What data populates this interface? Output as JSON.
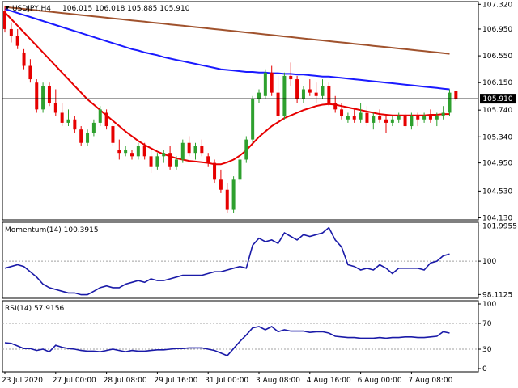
{
  "chart_data": {
    "type": "candlestick",
    "symbol_timeframe": "USDJPY,H4",
    "ohlc_header": "106.015 106.018 105.885 105.910",
    "last_price_label": "105.910",
    "last_price": 105.91,
    "colors": {
      "bull": "#2ea02e",
      "bear": "#e60000",
      "ma_fast": "#e60000",
      "ma_mid": "#1a1aff",
      "ma_slow": "#a0522d",
      "indicator_line": "#1a1aa8",
      "grid_dotted": "#a0a0a0",
      "price_line": "#000000",
      "price_tag_bg": "#000000"
    },
    "price_axis": {
      "min": 104.1,
      "max": 107.36,
      "tick_labels": [
        "107.320",
        "106.950",
        "106.550",
        "106.150",
        "105.740",
        "105.340",
        "104.950",
        "104.530",
        "104.130"
      ],
      "tick_values": [
        107.32,
        106.95,
        106.55,
        106.15,
        105.74,
        105.34,
        104.95,
        104.53,
        104.13
      ]
    },
    "x_axis": {
      "tick_labels": [
        "23 Jul 2020",
        "27 Jul 00:00",
        "28 Jul 08:00",
        "29 Jul 16:00",
        "31 Jul 00:00",
        "3 Aug 08:00",
        "4 Aug 16:00",
        "6 Aug 00:00",
        "7 Aug 08:00"
      ],
      "tick_bar_index": [
        0,
        8,
        16,
        24,
        32,
        40,
        48,
        56,
        64
      ]
    },
    "candles": [
      {
        "o": 107.22,
        "h": 107.3,
        "l": 106.9,
        "c": 106.95
      },
      {
        "o": 106.95,
        "h": 107.05,
        "l": 106.75,
        "c": 106.85
      },
      {
        "o": 106.85,
        "h": 106.95,
        "l": 106.65,
        "c": 106.7
      },
      {
        "o": 106.6,
        "h": 106.65,
        "l": 106.35,
        "c": 106.4
      },
      {
        "o": 106.4,
        "h": 106.5,
        "l": 106.15,
        "c": 106.2
      },
      {
        "o": 106.15,
        "h": 106.2,
        "l": 105.7,
        "c": 105.75
      },
      {
        "o": 105.75,
        "h": 106.15,
        "l": 105.7,
        "c": 106.1
      },
      {
        "o": 106.1,
        "h": 106.15,
        "l": 105.8,
        "c": 105.85
      },
      {
        "o": 105.85,
        "h": 106.05,
        "l": 105.65,
        "c": 105.7
      },
      {
        "o": 105.7,
        "h": 105.85,
        "l": 105.5,
        "c": 105.55
      },
      {
        "o": 105.55,
        "h": 105.75,
        "l": 105.5,
        "c": 105.6
      },
      {
        "o": 105.6,
        "h": 105.65,
        "l": 105.4,
        "c": 105.45
      },
      {
        "o": 105.45,
        "h": 105.5,
        "l": 105.2,
        "c": 105.25
      },
      {
        "o": 105.25,
        "h": 105.45,
        "l": 105.2,
        "c": 105.4
      },
      {
        "o": 105.4,
        "h": 105.6,
        "l": 105.35,
        "c": 105.55
      },
      {
        "o": 105.55,
        "h": 105.8,
        "l": 105.5,
        "c": 105.75
      },
      {
        "o": 105.7,
        "h": 105.75,
        "l": 105.45,
        "c": 105.5
      },
      {
        "o": 105.5,
        "h": 105.55,
        "l": 105.2,
        "c": 105.25
      },
      {
        "o": 105.15,
        "h": 105.3,
        "l": 105.0,
        "c": 105.1
      },
      {
        "o": 105.1,
        "h": 105.2,
        "l": 105.05,
        "c": 105.15
      },
      {
        "o": 105.1,
        "h": 105.15,
        "l": 105.0,
        "c": 105.05
      },
      {
        "o": 105.05,
        "h": 105.25,
        "l": 105.0,
        "c": 105.2
      },
      {
        "o": 105.2,
        "h": 105.25,
        "l": 105.0,
        "c": 105.05
      },
      {
        "o": 105.05,
        "h": 105.15,
        "l": 104.8,
        "c": 104.9
      },
      {
        "o": 104.9,
        "h": 105.1,
        "l": 104.85,
        "c": 105.05
      },
      {
        "o": 105.05,
        "h": 105.15,
        "l": 104.95,
        "c": 105.1
      },
      {
        "o": 105.1,
        "h": 105.2,
        "l": 104.85,
        "c": 104.9
      },
      {
        "o": 104.9,
        "h": 105.05,
        "l": 104.85,
        "c": 105.0
      },
      {
        "o": 105.0,
        "h": 105.3,
        "l": 104.95,
        "c": 105.25
      },
      {
        "o": 105.25,
        "h": 105.35,
        "l": 105.05,
        "c": 105.1
      },
      {
        "o": 105.1,
        "h": 105.25,
        "l": 105.0,
        "c": 105.2
      },
      {
        "o": 105.2,
        "h": 105.3,
        "l": 105.05,
        "c": 105.1
      },
      {
        "o": 105.05,
        "h": 105.1,
        "l": 104.9,
        "c": 104.95
      },
      {
        "o": 104.95,
        "h": 105.0,
        "l": 104.65,
        "c": 104.7
      },
      {
        "o": 104.7,
        "h": 104.85,
        "l": 104.5,
        "c": 104.55
      },
      {
        "o": 104.55,
        "h": 104.65,
        "l": 104.2,
        "c": 104.25
      },
      {
        "o": 104.25,
        "h": 104.75,
        "l": 104.2,
        "c": 104.7
      },
      {
        "o": 104.7,
        "h": 105.05,
        "l": 104.65,
        "c": 105.0
      },
      {
        "o": 105.0,
        "h": 105.35,
        "l": 104.95,
        "c": 105.3
      },
      {
        "o": 105.3,
        "h": 105.95,
        "l": 105.25,
        "c": 105.9
      },
      {
        "o": 105.9,
        "h": 106.05,
        "l": 105.85,
        "c": 106.0
      },
      {
        "o": 105.95,
        "h": 106.35,
        "l": 105.9,
        "c": 106.3
      },
      {
        "o": 106.3,
        "h": 106.4,
        "l": 105.95,
        "c": 106.0
      },
      {
        "o": 106.0,
        "h": 106.25,
        "l": 105.6,
        "c": 105.65
      },
      {
        "o": 105.65,
        "h": 106.3,
        "l": 105.6,
        "c": 106.25
      },
      {
        "o": 106.25,
        "h": 106.45,
        "l": 106.1,
        "c": 106.2
      },
      {
        "o": 106.2,
        "h": 106.25,
        "l": 105.85,
        "c": 105.9
      },
      {
        "o": 105.9,
        "h": 106.1,
        "l": 105.85,
        "c": 106.05
      },
      {
        "o": 106.05,
        "h": 106.2,
        "l": 105.95,
        "c": 106.0
      },
      {
        "o": 106.0,
        "h": 106.15,
        "l": 105.85,
        "c": 105.95
      },
      {
        "o": 105.95,
        "h": 106.2,
        "l": 105.9,
        "c": 106.1
      },
      {
        "o": 106.1,
        "h": 106.15,
        "l": 105.8,
        "c": 105.85
      },
      {
        "o": 105.85,
        "h": 105.95,
        "l": 105.7,
        "c": 105.75
      },
      {
        "o": 105.75,
        "h": 105.85,
        "l": 105.6,
        "c": 105.65
      },
      {
        "o": 105.6,
        "h": 105.7,
        "l": 105.55,
        "c": 105.65
      },
      {
        "o": 105.65,
        "h": 105.75,
        "l": 105.55,
        "c": 105.6
      },
      {
        "o": 105.6,
        "h": 105.85,
        "l": 105.55,
        "c": 105.7
      },
      {
        "o": 105.7,
        "h": 105.8,
        "l": 105.5,
        "c": 105.55
      },
      {
        "o": 105.55,
        "h": 105.7,
        "l": 105.45,
        "c": 105.65
      },
      {
        "o": 105.65,
        "h": 105.75,
        "l": 105.55,
        "c": 105.6
      },
      {
        "o": 105.6,
        "h": 105.65,
        "l": 105.4,
        "c": 105.55
      },
      {
        "o": 105.55,
        "h": 105.65,
        "l": 105.5,
        "c": 105.6
      },
      {
        "o": 105.6,
        "h": 105.7,
        "l": 105.55,
        "c": 105.65
      },
      {
        "o": 105.65,
        "h": 105.7,
        "l": 105.45,
        "c": 105.5
      },
      {
        "o": 105.5,
        "h": 105.7,
        "l": 105.45,
        "c": 105.65
      },
      {
        "o": 105.65,
        "h": 105.7,
        "l": 105.5,
        "c": 105.6
      },
      {
        "o": 105.6,
        "h": 105.7,
        "l": 105.55,
        "c": 105.65
      },
      {
        "o": 105.65,
        "h": 105.75,
        "l": 105.55,
        "c": 105.6
      },
      {
        "o": 105.6,
        "h": 105.7,
        "l": 105.5,
        "c": 105.65
      },
      {
        "o": 105.65,
        "h": 105.8,
        "l": 105.6,
        "c": 105.7
      },
      {
        "o": 105.7,
        "h": 106.05,
        "l": 105.65,
        "c": 106.0
      },
      {
        "o": 106.02,
        "h": 106.02,
        "l": 105.88,
        "c": 105.91
      }
    ],
    "ma_fast": [
      107.2,
      107.1,
      107.0,
      106.9,
      106.8,
      106.7,
      106.6,
      106.5,
      106.4,
      106.3,
      106.2,
      106.1,
      106.0,
      105.9,
      105.82,
      105.74,
      105.66,
      105.58,
      105.5,
      105.42,
      105.35,
      105.28,
      105.22,
      105.17,
      105.12,
      105.08,
      105.05,
      105.02,
      105.0,
      104.98,
      104.97,
      104.96,
      104.95,
      104.93,
      104.93,
      104.96,
      105.0,
      105.06,
      105.14,
      105.24,
      105.34,
      105.42,
      105.5,
      105.56,
      105.62,
      105.66,
      105.7,
      105.74,
      105.77,
      105.8,
      105.82,
      105.83,
      105.82,
      105.8,
      105.78,
      105.76,
      105.74,
      105.72,
      105.7,
      105.68,
      105.67,
      105.66,
      105.66,
      105.66,
      105.66,
      105.66,
      105.66,
      105.67,
      105.67,
      105.68,
      105.68
    ],
    "ma_mid": [
      107.25,
      107.22,
      107.19,
      107.16,
      107.13,
      107.1,
      107.07,
      107.04,
      107.01,
      106.98,
      106.95,
      106.92,
      106.89,
      106.86,
      106.83,
      106.8,
      106.77,
      106.74,
      106.71,
      106.68,
      106.65,
      106.63,
      106.6,
      106.58,
      106.56,
      106.53,
      106.51,
      106.49,
      106.47,
      106.45,
      106.43,
      106.41,
      106.39,
      106.37,
      106.35,
      106.34,
      106.33,
      106.32,
      106.31,
      106.31,
      106.3,
      106.3,
      106.29,
      106.29,
      106.28,
      106.28,
      106.27,
      106.27,
      106.26,
      106.25,
      106.24,
      106.24,
      106.23,
      106.22,
      106.21,
      106.2,
      106.19,
      106.18,
      106.17,
      106.16,
      106.15,
      106.14,
      106.13,
      106.12,
      106.11,
      106.1,
      106.09,
      106.08,
      106.07,
      106.06,
      106.05
    ],
    "ma_slow": [
      107.28,
      107.27,
      107.26,
      107.25,
      107.24,
      107.23,
      107.22,
      107.21,
      107.2,
      107.19,
      107.18,
      107.17,
      107.16,
      107.15,
      107.14,
      107.13,
      107.12,
      107.11,
      107.1,
      107.09,
      107.08,
      107.07,
      107.06,
      107.05,
      107.04,
      107.03,
      107.02,
      107.01,
      107.0,
      106.99,
      106.98,
      106.97,
      106.96,
      106.95,
      106.94,
      106.93,
      106.92,
      106.91,
      106.9,
      106.89,
      106.88,
      106.87,
      106.86,
      106.85,
      106.84,
      106.83,
      106.82,
      106.81,
      106.8,
      106.79,
      106.78,
      106.77,
      106.76,
      106.75,
      106.74,
      106.73,
      106.72,
      106.71,
      106.7,
      106.69,
      106.68,
      106.67,
      106.66,
      106.65,
      106.64,
      106.63,
      106.62,
      106.61,
      106.6,
      106.59,
      106.58
    ],
    "momentum": {
      "label": "Momentum(14) 100.3915",
      "tick_labels": [
        "101.9955",
        "100",
        "98.1125"
      ],
      "tick_values": [
        101.9955,
        100,
        98.1125
      ],
      "min": 97.9,
      "max": 102.2,
      "values": [
        99.6,
        99.7,
        99.8,
        99.7,
        99.4,
        99.1,
        98.7,
        98.5,
        98.4,
        98.3,
        98.2,
        98.2,
        98.1,
        98.1,
        98.3,
        98.5,
        98.6,
        98.5,
        98.5,
        98.7,
        98.8,
        98.9,
        98.8,
        99.0,
        98.9,
        98.9,
        99.0,
        99.1,
        99.2,
        99.2,
        99.2,
        99.2,
        99.3,
        99.4,
        99.4,
        99.5,
        99.6,
        99.7,
        99.6,
        100.9,
        101.3,
        101.1,
        101.2,
        101.0,
        101.6,
        101.4,
        101.2,
        101.5,
        101.4,
        101.5,
        101.6,
        101.9,
        101.2,
        100.8,
        99.8,
        99.7,
        99.5,
        99.6,
        99.5,
        99.8,
        99.6,
        99.3,
        99.6,
        99.6,
        99.6,
        99.6,
        99.5,
        99.9,
        100.0,
        100.3,
        100.4
      ]
    },
    "rsi": {
      "label": "RSI(14) 57.9156",
      "tick_labels": [
        "100",
        "70",
        "30",
        "0"
      ],
      "tick_values": [
        100,
        70,
        30,
        0
      ],
      "dotted_levels": [
        70,
        30
      ],
      "values": [
        40,
        39,
        35,
        31,
        31,
        28,
        30,
        26,
        36,
        33,
        31,
        30,
        28,
        27,
        27,
        26,
        28,
        30,
        28,
        26,
        28,
        27,
        27,
        28,
        29,
        29,
        30,
        31,
        31,
        32,
        32,
        32,
        30,
        28,
        24,
        20,
        31,
        42,
        52,
        63,
        65,
        60,
        65,
        57,
        60,
        58,
        58,
        58,
        56,
        57,
        57,
        55,
        50,
        49,
        48,
        48,
        47,
        47,
        47,
        48,
        47,
        48,
        48,
        49,
        49,
        48,
        48,
        49,
        50,
        57,
        55
      ]
    }
  }
}
